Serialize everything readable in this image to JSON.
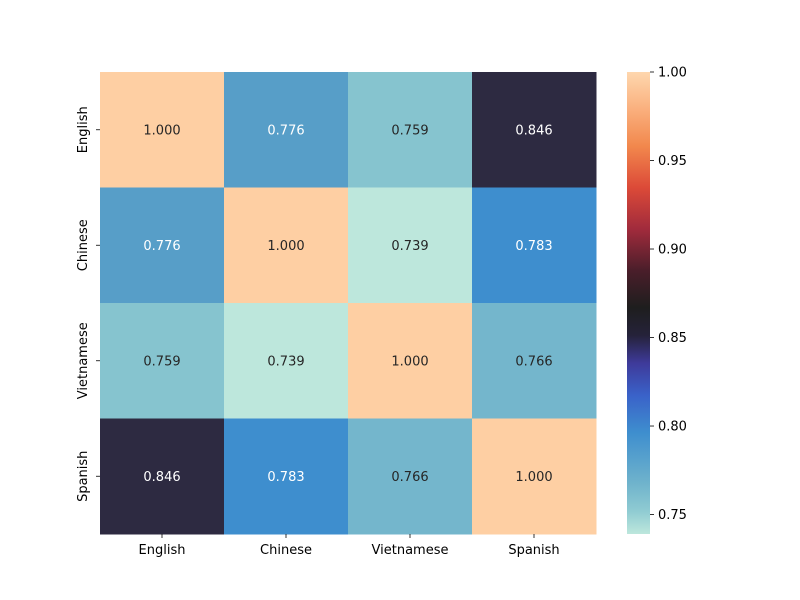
{
  "chart_data": {
    "type": "heatmap",
    "title": "",
    "xlabel": "",
    "ylabel": "",
    "x_categories": [
      "English",
      "Chinese",
      "Vietnamese",
      "Spanish"
    ],
    "y_categories": [
      "English",
      "Chinese",
      "Vietnamese",
      "Spanish"
    ],
    "values": [
      [
        1.0,
        0.776,
        0.759,
        0.846
      ],
      [
        0.776,
        1.0,
        0.739,
        0.783
      ],
      [
        0.759,
        0.739,
        1.0,
        0.766
      ],
      [
        0.846,
        0.783,
        0.766,
        1.0
      ]
    ],
    "cell_labels": [
      [
        "1.000",
        "0.776",
        "0.759",
        "0.846"
      ],
      [
        "0.776",
        "1.000",
        "0.739",
        "0.783"
      ],
      [
        "0.759",
        "0.739",
        "1.000",
        "0.766"
      ],
      [
        "0.846",
        "0.783",
        "0.766",
        "1.000"
      ]
    ],
    "colorbar": {
      "range": [
        0.739,
        1.0
      ],
      "ticks": [
        0.75,
        0.8,
        0.85,
        0.9,
        0.95,
        1.0
      ],
      "tick_labels": [
        "0.75",
        "0.80",
        "0.85",
        "0.90",
        "0.95",
        "1.00"
      ],
      "colormap": "icefire",
      "placement": "right"
    },
    "cell_colors": [
      [
        "#fecfa3",
        "#579ec8",
        "#86c4cf",
        "#2d2a41"
      ],
      [
        "#579ec8",
        "#fecfa3",
        "#bde7dc",
        "#3e8ece"
      ],
      [
        "#86c4cf",
        "#bde7dc",
        "#fecfa3",
        "#74b6cc"
      ],
      [
        "#2d2a41",
        "#3e8ece",
        "#74b6cc",
        "#fecfa3"
      ]
    ],
    "text_colors": [
      [
        "#262626",
        "#ffffff",
        "#262626",
        "#ffffff"
      ],
      [
        "#ffffff",
        "#262626",
        "#262626",
        "#ffffff"
      ],
      [
        "#262626",
        "#262626",
        "#262626",
        "#262626"
      ],
      [
        "#ffffff",
        "#ffffff",
        "#262626",
        "#262626"
      ]
    ],
    "colorbar_gradient": [
      {
        "stop": 0.0,
        "color": "#bde7dc"
      },
      {
        "stop": 0.05,
        "color": "#8fcbd2"
      },
      {
        "stop": 0.11,
        "color": "#6fb3cc"
      },
      {
        "stop": 0.22,
        "color": "#3e8ece"
      },
      {
        "stop": 0.3,
        "color": "#3a62c9"
      },
      {
        "stop": 0.37,
        "color": "#3e3a9a"
      },
      {
        "stop": 0.43,
        "color": "#25223a"
      },
      {
        "stop": 0.49,
        "color": "#1e1e1e"
      },
      {
        "stop": 0.57,
        "color": "#4a1e2a"
      },
      {
        "stop": 0.66,
        "color": "#a12b3c"
      },
      {
        "stop": 0.75,
        "color": "#dc4a38"
      },
      {
        "stop": 0.84,
        "color": "#f2884d"
      },
      {
        "stop": 0.92,
        "color": "#fab07e"
      },
      {
        "stop": 1.0,
        "color": "#fed7ae"
      }
    ]
  }
}
